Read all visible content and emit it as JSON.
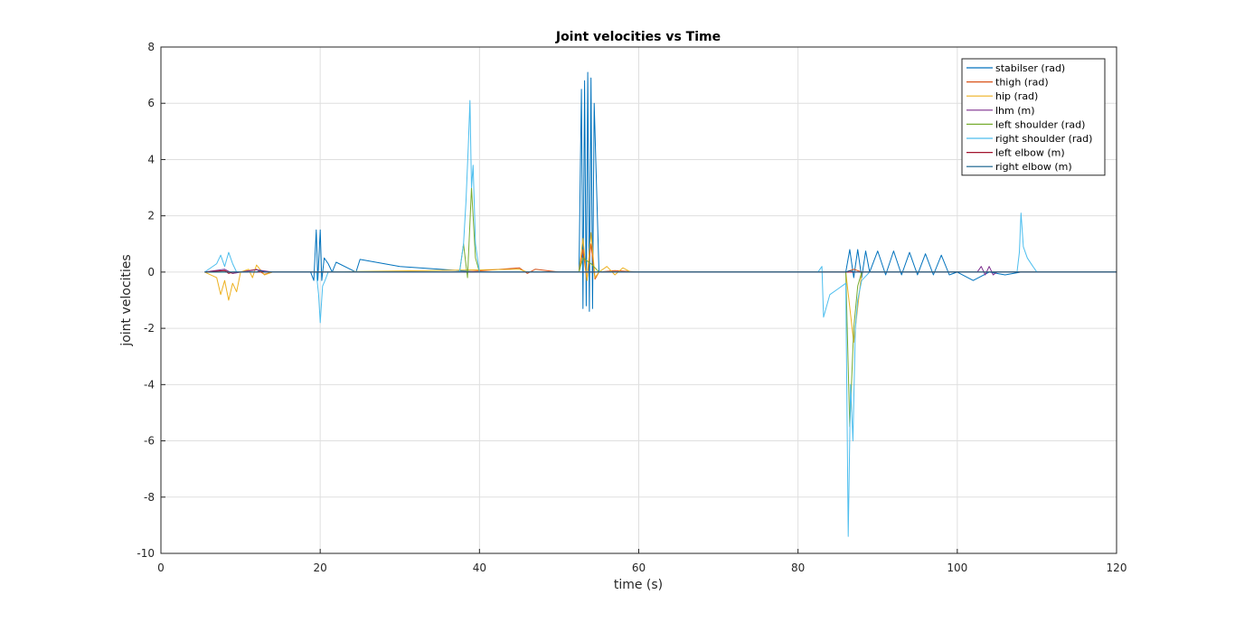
{
  "chart_data": {
    "type": "line",
    "title": "Joint velocities vs Time",
    "xlabel": "time (s)",
    "ylabel": "joint velocities",
    "xlim": [
      0,
      120
    ],
    "ylim": [
      -10,
      8
    ],
    "xticks": [
      0,
      20,
      40,
      60,
      80,
      100,
      120
    ],
    "yticks": [
      -10,
      -8,
      -6,
      -4,
      -2,
      0,
      2,
      4,
      6,
      8
    ],
    "grid": true,
    "legend_position": "top-right",
    "series": [
      {
        "name": "stabilser (rad)",
        "color": "#0072BD",
        "x": [
          5.5,
          18.8,
          19.2,
          19.5,
          19.7,
          20.0,
          20.2,
          20.5,
          21.0,
          21.5,
          22.0,
          24.5,
          25.0,
          30.0,
          35.0,
          40.0,
          52.5,
          52.8,
          53.0,
          53.2,
          53.4,
          53.6,
          53.8,
          54.0,
          54.2,
          54.4,
          55.0,
          60.0,
          80.0,
          86.0,
          86.5,
          87.0,
          87.5,
          88.0,
          88.5,
          89.0,
          90.0,
          91.0,
          92.0,
          93.0,
          94.0,
          95.0,
          96.0,
          97.0,
          98.0,
          99.0,
          100.0,
          102.0,
          104.0,
          106.0,
          108.0,
          110.0,
          115.0,
          120.0
        ],
        "y": [
          0.0,
          0.0,
          -0.3,
          1.5,
          -0.3,
          1.5,
          -0.3,
          0.5,
          0.3,
          0.0,
          0.35,
          0.0,
          0.45,
          0.2,
          0.1,
          0.0,
          0.0,
          6.5,
          -1.3,
          6.8,
          -1.2,
          7.1,
          -1.4,
          6.9,
          -1.3,
          6.0,
          0.0,
          0.0,
          0.0,
          0.0,
          0.8,
          -0.2,
          0.8,
          -0.2,
          0.75,
          0.0,
          0.75,
          -0.1,
          0.75,
          -0.1,
          0.7,
          -0.1,
          0.65,
          -0.1,
          0.6,
          -0.1,
          0.0,
          -0.3,
          0.0,
          -0.1,
          0.0,
          0.0,
          0.0,
          0.0
        ]
      },
      {
        "name": "thigh (rad)",
        "color": "#D95319",
        "x": [
          5.5,
          8.0,
          9.0,
          10.0,
          12.0,
          13.0,
          14.0,
          20.0,
          38.0,
          45.0,
          46.0,
          47.0,
          50.0,
          52.5,
          53.0,
          53.5,
          54.0,
          54.5,
          55.0,
          57.0,
          60.0,
          86.0,
          87.0,
          88.0,
          100.0,
          120.0
        ],
        "y": [
          0.0,
          0.05,
          -0.05,
          0.0,
          0.1,
          -0.08,
          0.0,
          0.0,
          0.0,
          0.15,
          -0.05,
          0.1,
          0.0,
          0.0,
          0.8,
          -0.3,
          1.0,
          -0.25,
          0.0,
          0.05,
          0.0,
          0.0,
          0.1,
          0.0,
          0.0,
          0.0
        ]
      },
      {
        "name": "hip (rad)",
        "color": "#EDB120",
        "x": [
          5.5,
          7.0,
          7.5,
          8.0,
          8.5,
          9.0,
          9.5,
          10.0,
          11.0,
          11.5,
          12.0,
          13.0,
          14.0,
          20.0,
          45.0,
          46.0,
          52.5,
          53.0,
          53.5,
          54.0,
          54.5,
          55.0,
          56.0,
          57.0,
          58.0,
          59.0,
          60.0,
          86.0,
          87.0,
          88.0,
          100.0,
          120.0
        ],
        "y": [
          0.0,
          -0.2,
          -0.8,
          -0.3,
          -1.0,
          -0.4,
          -0.7,
          0.0,
          0.1,
          -0.2,
          0.25,
          -0.1,
          0.0,
          0.0,
          0.1,
          0.0,
          0.0,
          1.2,
          -0.3,
          1.4,
          -0.2,
          0.0,
          0.2,
          -0.1,
          0.15,
          0.0,
          0.0,
          0.0,
          -2.5,
          0.0,
          0.0,
          0.0
        ]
      },
      {
        "name": "lhm (m)",
        "color": "#7E2F8E",
        "x": [
          5.5,
          8.0,
          9.0,
          10.0,
          12.0,
          14.0,
          60.0,
          102.5,
          103.0,
          103.5,
          104.0,
          104.5,
          105.0,
          120.0
        ],
        "y": [
          0.0,
          0.1,
          -0.05,
          0.0,
          0.08,
          0.0,
          0.0,
          0.0,
          0.2,
          -0.1,
          0.2,
          -0.1,
          0.0,
          0.0
        ]
      },
      {
        "name": "left shoulder (rad)",
        "color": "#77AC30",
        "x": [
          5.5,
          20.0,
          37.5,
          38.0,
          38.5,
          39.0,
          39.5,
          40.0,
          52.5,
          53.0,
          54.0,
          55.0,
          86.0,
          86.5,
          87.0,
          87.5,
          88.0,
          120.0
        ],
        "y": [
          0.0,
          0.0,
          0.0,
          1.0,
          -0.2,
          3.0,
          0.5,
          0.0,
          0.0,
          0.5,
          0.3,
          0.0,
          0.0,
          -5.5,
          -2.0,
          -0.5,
          0.0,
          0.0
        ]
      },
      {
        "name": "right shoulder (rad)",
        "color": "#4DBEEE",
        "x": [
          5.5,
          7.0,
          7.5,
          8.0,
          8.5,
          9.0,
          9.5,
          10.0,
          19.5,
          19.8,
          20.0,
          20.3,
          20.6,
          21.0,
          37.5,
          38.0,
          38.3,
          38.6,
          38.8,
          39.0,
          39.2,
          39.5,
          40.0,
          41.0,
          82.5,
          83.0,
          83.2,
          84.0,
          85.0,
          86.0,
          86.3,
          86.6,
          86.9,
          87.2,
          87.5,
          88.0,
          89.0,
          90.0,
          100.0,
          107.5,
          107.8,
          108.0,
          108.3,
          108.8,
          109.5,
          110.0,
          120.0
        ],
        "y": [
          0.0,
          0.3,
          0.6,
          0.2,
          0.7,
          0.3,
          0.0,
          0.0,
          0.0,
          -0.8,
          -1.8,
          -0.5,
          -0.3,
          0.0,
          0.0,
          1.0,
          2.5,
          4.5,
          6.1,
          3.0,
          3.8,
          1.0,
          0.0,
          0.0,
          0.0,
          0.2,
          -1.6,
          -0.8,
          -0.6,
          -0.4,
          -9.4,
          -4.0,
          -6.0,
          -2.0,
          -1.0,
          -0.3,
          0.0,
          0.0,
          0.0,
          0.0,
          0.7,
          2.1,
          0.9,
          0.5,
          0.2,
          0.0,
          0.0
        ]
      },
      {
        "name": "left elbow (m)",
        "color": "#A2142F",
        "x": [
          5.5,
          8.0,
          8.5,
          9.0,
          60.0,
          120.0
        ],
        "y": [
          0.0,
          0.05,
          -0.05,
          0.0,
          0.0,
          0.0
        ]
      },
      {
        "name": "right elbow (m)",
        "color": "#0F5D8A",
        "x": [
          5.5,
          12.0,
          12.5,
          13.0,
          60.0,
          86.0,
          86.5,
          87.0,
          120.0
        ],
        "y": [
          0.0,
          0.0,
          0.05,
          0.0,
          0.0,
          0.0,
          0.05,
          0.0,
          0.0
        ]
      }
    ]
  }
}
